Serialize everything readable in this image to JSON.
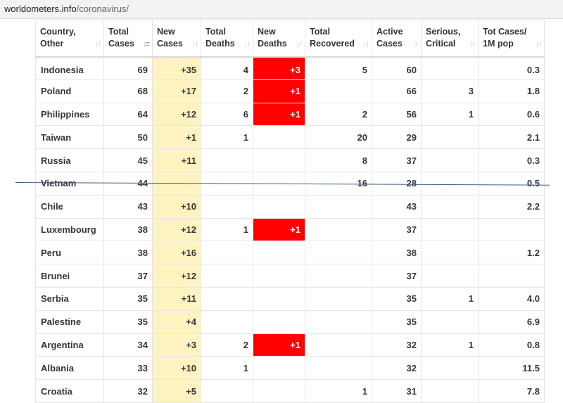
{
  "browser": {
    "url_host": "worldometers.info",
    "url_path": "/coronavirus/"
  },
  "table": {
    "headers": [
      {
        "line1": "Country,",
        "line2": "Other"
      },
      {
        "line1": "Total",
        "line2": "Cases"
      },
      {
        "line1": "New",
        "line2": "Cases"
      },
      {
        "line1": "Total",
        "line2": "Deaths"
      },
      {
        "line1": "New",
        "line2": "Deaths"
      },
      {
        "line1": "Total",
        "line2": "Recovered"
      },
      {
        "line1": "Active",
        "line2": "Cases"
      },
      {
        "line1": "Serious,",
        "line2": "Critical"
      },
      {
        "line1": "Tot Cases/",
        "line2": "1M pop"
      }
    ],
    "rows": [
      {
        "country": "Indonesia",
        "total_cases": "69",
        "new_cases": "+35",
        "total_deaths": "4",
        "new_deaths": "+3",
        "total_recovered": "5",
        "active_cases": "60",
        "serious": "",
        "per_million": "0.3"
      },
      {
        "country": "Poland",
        "total_cases": "68",
        "new_cases": "+17",
        "total_deaths": "2",
        "new_deaths": "+1",
        "total_recovered": "",
        "active_cases": "66",
        "serious": "3",
        "per_million": "1.8"
      },
      {
        "country": "Philippines",
        "total_cases": "64",
        "new_cases": "+12",
        "total_deaths": "6",
        "new_deaths": "+1",
        "total_recovered": "2",
        "active_cases": "56",
        "serious": "1",
        "per_million": "0.6"
      },
      {
        "country": "Taiwan",
        "total_cases": "50",
        "new_cases": "+1",
        "total_deaths": "1",
        "new_deaths": "",
        "total_recovered": "20",
        "active_cases": "29",
        "serious": "",
        "per_million": "2.1"
      },
      {
        "country": "Russia",
        "total_cases": "45",
        "new_cases": "+11",
        "total_deaths": "",
        "new_deaths": "",
        "total_recovered": "8",
        "active_cases": "37",
        "serious": "",
        "per_million": "0.3"
      },
      {
        "country": "Vietnam",
        "total_cases": "44",
        "new_cases": "",
        "total_deaths": "",
        "new_deaths": "",
        "total_recovered": "16",
        "active_cases": "28",
        "serious": "",
        "per_million": "0.5"
      },
      {
        "country": "Chile",
        "total_cases": "43",
        "new_cases": "+10",
        "total_deaths": "",
        "new_deaths": "",
        "total_recovered": "",
        "active_cases": "43",
        "serious": "",
        "per_million": "2.2"
      },
      {
        "country": "Luxembourg",
        "total_cases": "38",
        "new_cases": "+12",
        "total_deaths": "1",
        "new_deaths": "+1",
        "total_recovered": "",
        "active_cases": "37",
        "serious": "",
        "per_million": ""
      },
      {
        "country": "Peru",
        "total_cases": "38",
        "new_cases": "+16",
        "total_deaths": "",
        "new_deaths": "",
        "total_recovered": "",
        "active_cases": "38",
        "serious": "",
        "per_million": "1.2"
      },
      {
        "country": "Brunei",
        "total_cases": "37",
        "new_cases": "+12",
        "total_deaths": "",
        "new_deaths": "",
        "total_recovered": "",
        "active_cases": "37",
        "serious": "",
        "per_million": ""
      },
      {
        "country": "Serbia",
        "total_cases": "35",
        "new_cases": "+11",
        "total_deaths": "",
        "new_deaths": "",
        "total_recovered": "",
        "active_cases": "35",
        "serious": "1",
        "per_million": "4.0"
      },
      {
        "country": "Palestine",
        "total_cases": "35",
        "new_cases": "+4",
        "total_deaths": "",
        "new_deaths": "",
        "total_recovered": "",
        "active_cases": "35",
        "serious": "",
        "per_million": "6.9"
      },
      {
        "country": "Argentina",
        "total_cases": "34",
        "new_cases": "+3",
        "total_deaths": "2",
        "new_deaths": "+1",
        "total_recovered": "",
        "active_cases": "32",
        "serious": "1",
        "per_million": "0.8"
      },
      {
        "country": "Albania",
        "total_cases": "33",
        "new_cases": "+10",
        "total_deaths": "1",
        "new_deaths": "",
        "total_recovered": "",
        "active_cases": "32",
        "serious": "",
        "per_million": "11.5"
      },
      {
        "country": "Croatia",
        "total_cases": "32",
        "new_cases": "+5",
        "total_deaths": "",
        "new_deaths": "",
        "total_recovered": "1",
        "active_cases": "31",
        "serious": "",
        "per_million": "7.8"
      }
    ]
  },
  "colors": {
    "new_cases_bg": "#fff3c2",
    "new_deaths_bg": "#ff0000",
    "divider": "#3b5f86"
  }
}
